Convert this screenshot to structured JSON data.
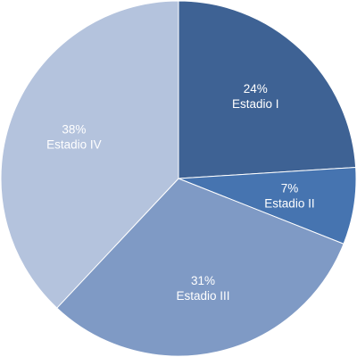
{
  "chart_data": {
    "type": "pie",
    "slices": [
      {
        "label": "Estadio I",
        "value": 24,
        "value_label": "24%",
        "color": "#3e6294"
      },
      {
        "label": "Estadio II",
        "value": 7,
        "value_label": "7%",
        "color": "#4674b0"
      },
      {
        "label": "Estadio III",
        "value": 31,
        "value_label": "31%",
        "color": "#7f9ac5"
      },
      {
        "label": "Estadio IV",
        "value": 38,
        "value_label": "38%",
        "color": "#b4c3dd"
      }
    ],
    "start_angle_deg": 0,
    "direction": "clockwise"
  }
}
